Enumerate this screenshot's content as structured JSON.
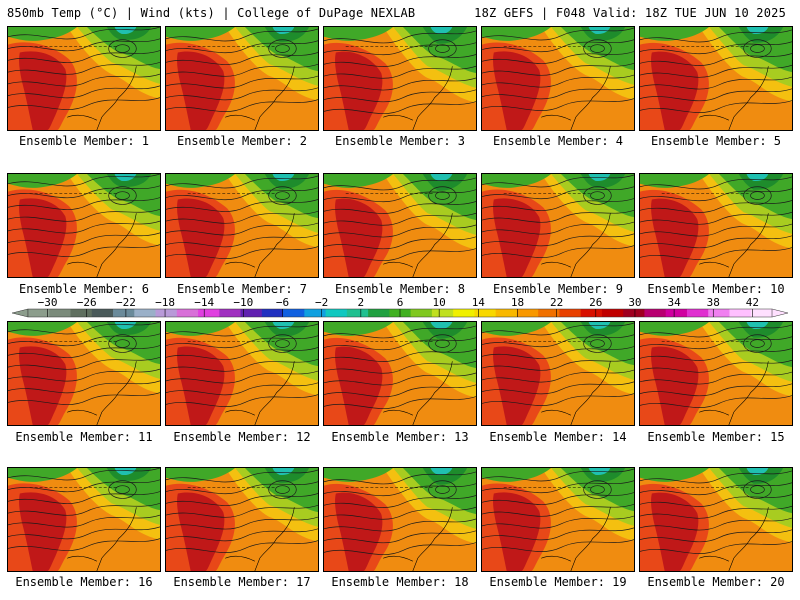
{
  "header": {
    "left": "850mb Temp (°C) | Wind (kts) | College of DuPage NEXLAB",
    "right": "18Z GEFS | F048 Valid: 18Z TUE JUN 10 2025"
  },
  "member_label_prefix": "Ensemble Member: ",
  "members": [
    "1",
    "2",
    "3",
    "4",
    "5",
    "6",
    "7",
    "8",
    "9",
    "10",
    "11",
    "12",
    "13",
    "14",
    "15",
    "16",
    "17",
    "18",
    "19",
    "20"
  ],
  "colorbar": {
    "tick_labels": [
      "−30",
      "−26",
      "−22",
      "−18",
      "−14",
      "−10",
      "−6",
      "−2",
      "2",
      "6",
      "10",
      "14",
      "18",
      "22",
      "26",
      "30",
      "34",
      "38",
      "42"
    ],
    "colors": [
      "#8c9d8c",
      "#7a8a7a",
      "#5f6f5f",
      "#4a5a5a",
      "#6a8a9a",
      "#9ab0c8",
      "#b89ad8",
      "#d870d8",
      "#e040e0",
      "#a030c0",
      "#6020b0",
      "#2030c0",
      "#1060e0",
      "#10a0e0",
      "#10c8c0",
      "#20c090",
      "#20a040",
      "#40b020",
      "#80c820",
      "#c0e020",
      "#f0f000",
      "#f8d800",
      "#f8b800",
      "#f89800",
      "#f07000",
      "#e84000",
      "#d81000",
      "#c00000",
      "#a00020",
      "#b80070",
      "#d000a0",
      "#e030d0",
      "#f080f0",
      "#ffc0ff",
      "#ffe0ff"
    ],
    "ticks": [
      -30,
      -26,
      -22,
      -18,
      -14,
      -10,
      -6,
      -2,
      2,
      6,
      10,
      14,
      18,
      22,
      26,
      30,
      34,
      38,
      42
    ],
    "vmin": -32,
    "vmax": 44
  },
  "map_colors": {
    "hot": "#c01818",
    "warm": "#e84818",
    "mild": "#f08c10",
    "yellow": "#f4c010",
    "green_light": "#a8cc20",
    "green": "#40a828",
    "green_dark": "#1e8c2c",
    "cyan": "#20c0b0"
  }
}
